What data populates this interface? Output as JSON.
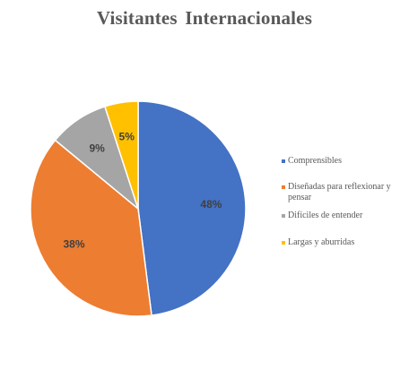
{
  "chart_data": {
    "type": "pie",
    "title": "Visitantes  Internacionales",
    "slices": [
      {
        "label": "Comprensibles",
        "value": 48,
        "display": "48%",
        "color": "#4472C4"
      },
      {
        "label": "Diseñadas para reflexionar y pensar",
        "value": 38,
        "display": "38%",
        "color": "#ED7D31"
      },
      {
        "label": "Difíciles de entender",
        "value": 9,
        "display": "9%",
        "color": "#A5A5A5"
      },
      {
        "label": "Largas y aburridas",
        "value": 5,
        "display": "5%",
        "color": "#FFC000"
      }
    ],
    "legend_position": "right"
  }
}
